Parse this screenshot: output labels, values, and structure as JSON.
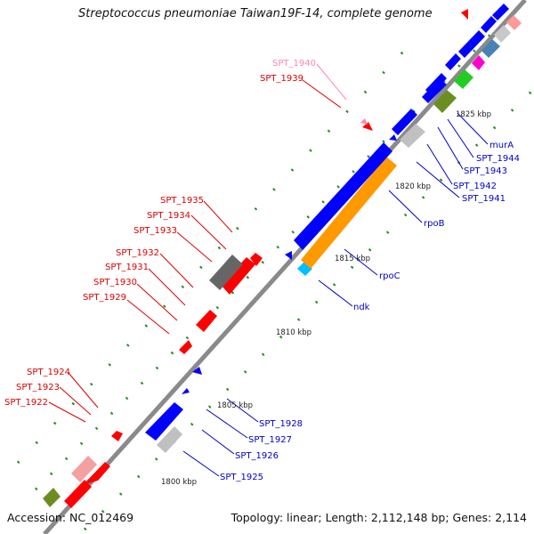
{
  "title": "Streptococcus pneumoniae Taiwan19F-14, complete genome",
  "accession": "Accession: NC_012469",
  "topology": "Topology: linear; Length: 2,112,148 bp; Genes: 2,114",
  "scale_labels": [
    "1800 kbp",
    "1805 kbp",
    "1810 kbp",
    "1815 kbp",
    "1820 kbp",
    "1825 kbp"
  ],
  "gene_labels_red": [
    "SPT_1922",
    "SPT_1923",
    "SPT_1924",
    "SPT_1929",
    "SPT_1930",
    "SPT_1931",
    "SPT_1932",
    "SPT_1933",
    "SPT_1934",
    "SPT_1935",
    "SPT_1939"
  ],
  "gene_labels_pink": [
    "SPT_1940"
  ],
  "gene_labels_blue": [
    "SPT_1925",
    "SPT_1926",
    "SPT_1927",
    "SPT_1928",
    "ndk",
    "rpoC",
    "rpoB",
    "SPT_1941",
    "SPT_1942",
    "SPT_1943",
    "SPT_1944",
    "murA"
  ],
  "colors": {
    "backbone": "#8a8a8a",
    "red": "#ff0000",
    "blue": "#0000ff",
    "orange": "#ff9900",
    "gray": "#c8c8c8",
    "darkgray": "#555555",
    "olive": "#6b8e23",
    "green": "#22cc22",
    "magenta": "#ff00cc",
    "steelblue": "#4682b4",
    "pink": "#ff9999",
    "cyan": "#00bfff",
    "label_red": "#dd0000",
    "label_blue": "#0000cc",
    "label_pink": "#ff88aa",
    "tick_green": "#228b22"
  }
}
